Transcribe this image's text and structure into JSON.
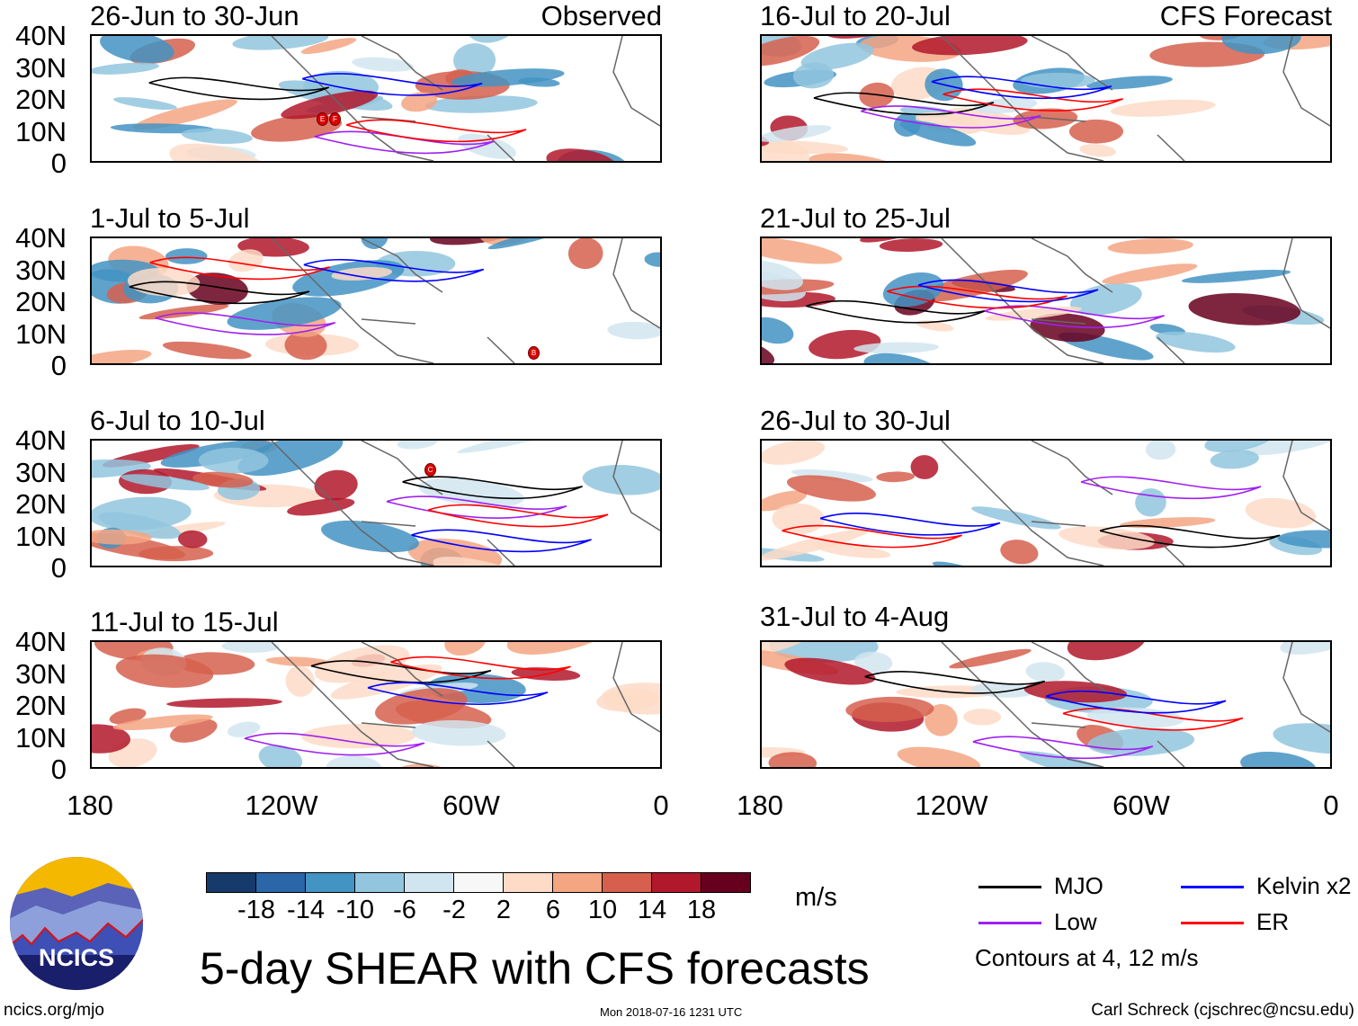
{
  "panels_left": [
    {
      "title": "26-Jun to 30-Jun",
      "tag": "Observed",
      "storms": [
        "E",
        "F"
      ]
    },
    {
      "title": "1-Jul to 5-Jul",
      "storms": [
        "B"
      ]
    },
    {
      "title": "6-Jul to 10-Jul",
      "storms": [
        "C"
      ]
    },
    {
      "title": "11-Jul to 15-Jul",
      "storms": []
    }
  ],
  "panels_right": [
    {
      "title": "16-Jul to 20-Jul",
      "tag": "CFS Forecast"
    },
    {
      "title": "21-Jul to 25-Jul"
    },
    {
      "title": "26-Jul to 30-Jul"
    },
    {
      "title": "31-Jul to 4-Aug"
    }
  ],
  "lat_labels": [
    "40N",
    "30N",
    "20N",
    "10N",
    "0"
  ],
  "lon_labels": [
    "180",
    "120W",
    "60W",
    "0"
  ],
  "colorbar": {
    "colors": [
      "#163a6a",
      "#2a66a8",
      "#4393c3",
      "#92c5de",
      "#d1e5f0",
      "#f7f7f7",
      "#fddbc7",
      "#f4a582",
      "#d6604d",
      "#b2182b",
      "#67001f"
    ],
    "labels": [
      "-18",
      "-14",
      "-10",
      "-6",
      "-2",
      "2",
      "6",
      "10",
      "14",
      "18"
    ],
    "unit": "m/s"
  },
  "legend": {
    "items": [
      {
        "label": "MJO",
        "color": "#000000"
      },
      {
        "label": "Kelvin x2",
        "color": "#0000ff"
      },
      {
        "label": "Low",
        "color": "#a020f0"
      },
      {
        "label": "ER",
        "color": "#ff0000"
      }
    ],
    "note": "Contours at 4, 12 m/s"
  },
  "logo": {
    "text": "NCICS"
  },
  "title": "5-day SHEAR with CFS forecasts",
  "footer": {
    "url": "ncics.org/mjo",
    "timestamp": "Mon 2018-07-16 1231 UTC",
    "credit": "Carl Schreck (cjschrec@ncsu.edu)"
  }
}
